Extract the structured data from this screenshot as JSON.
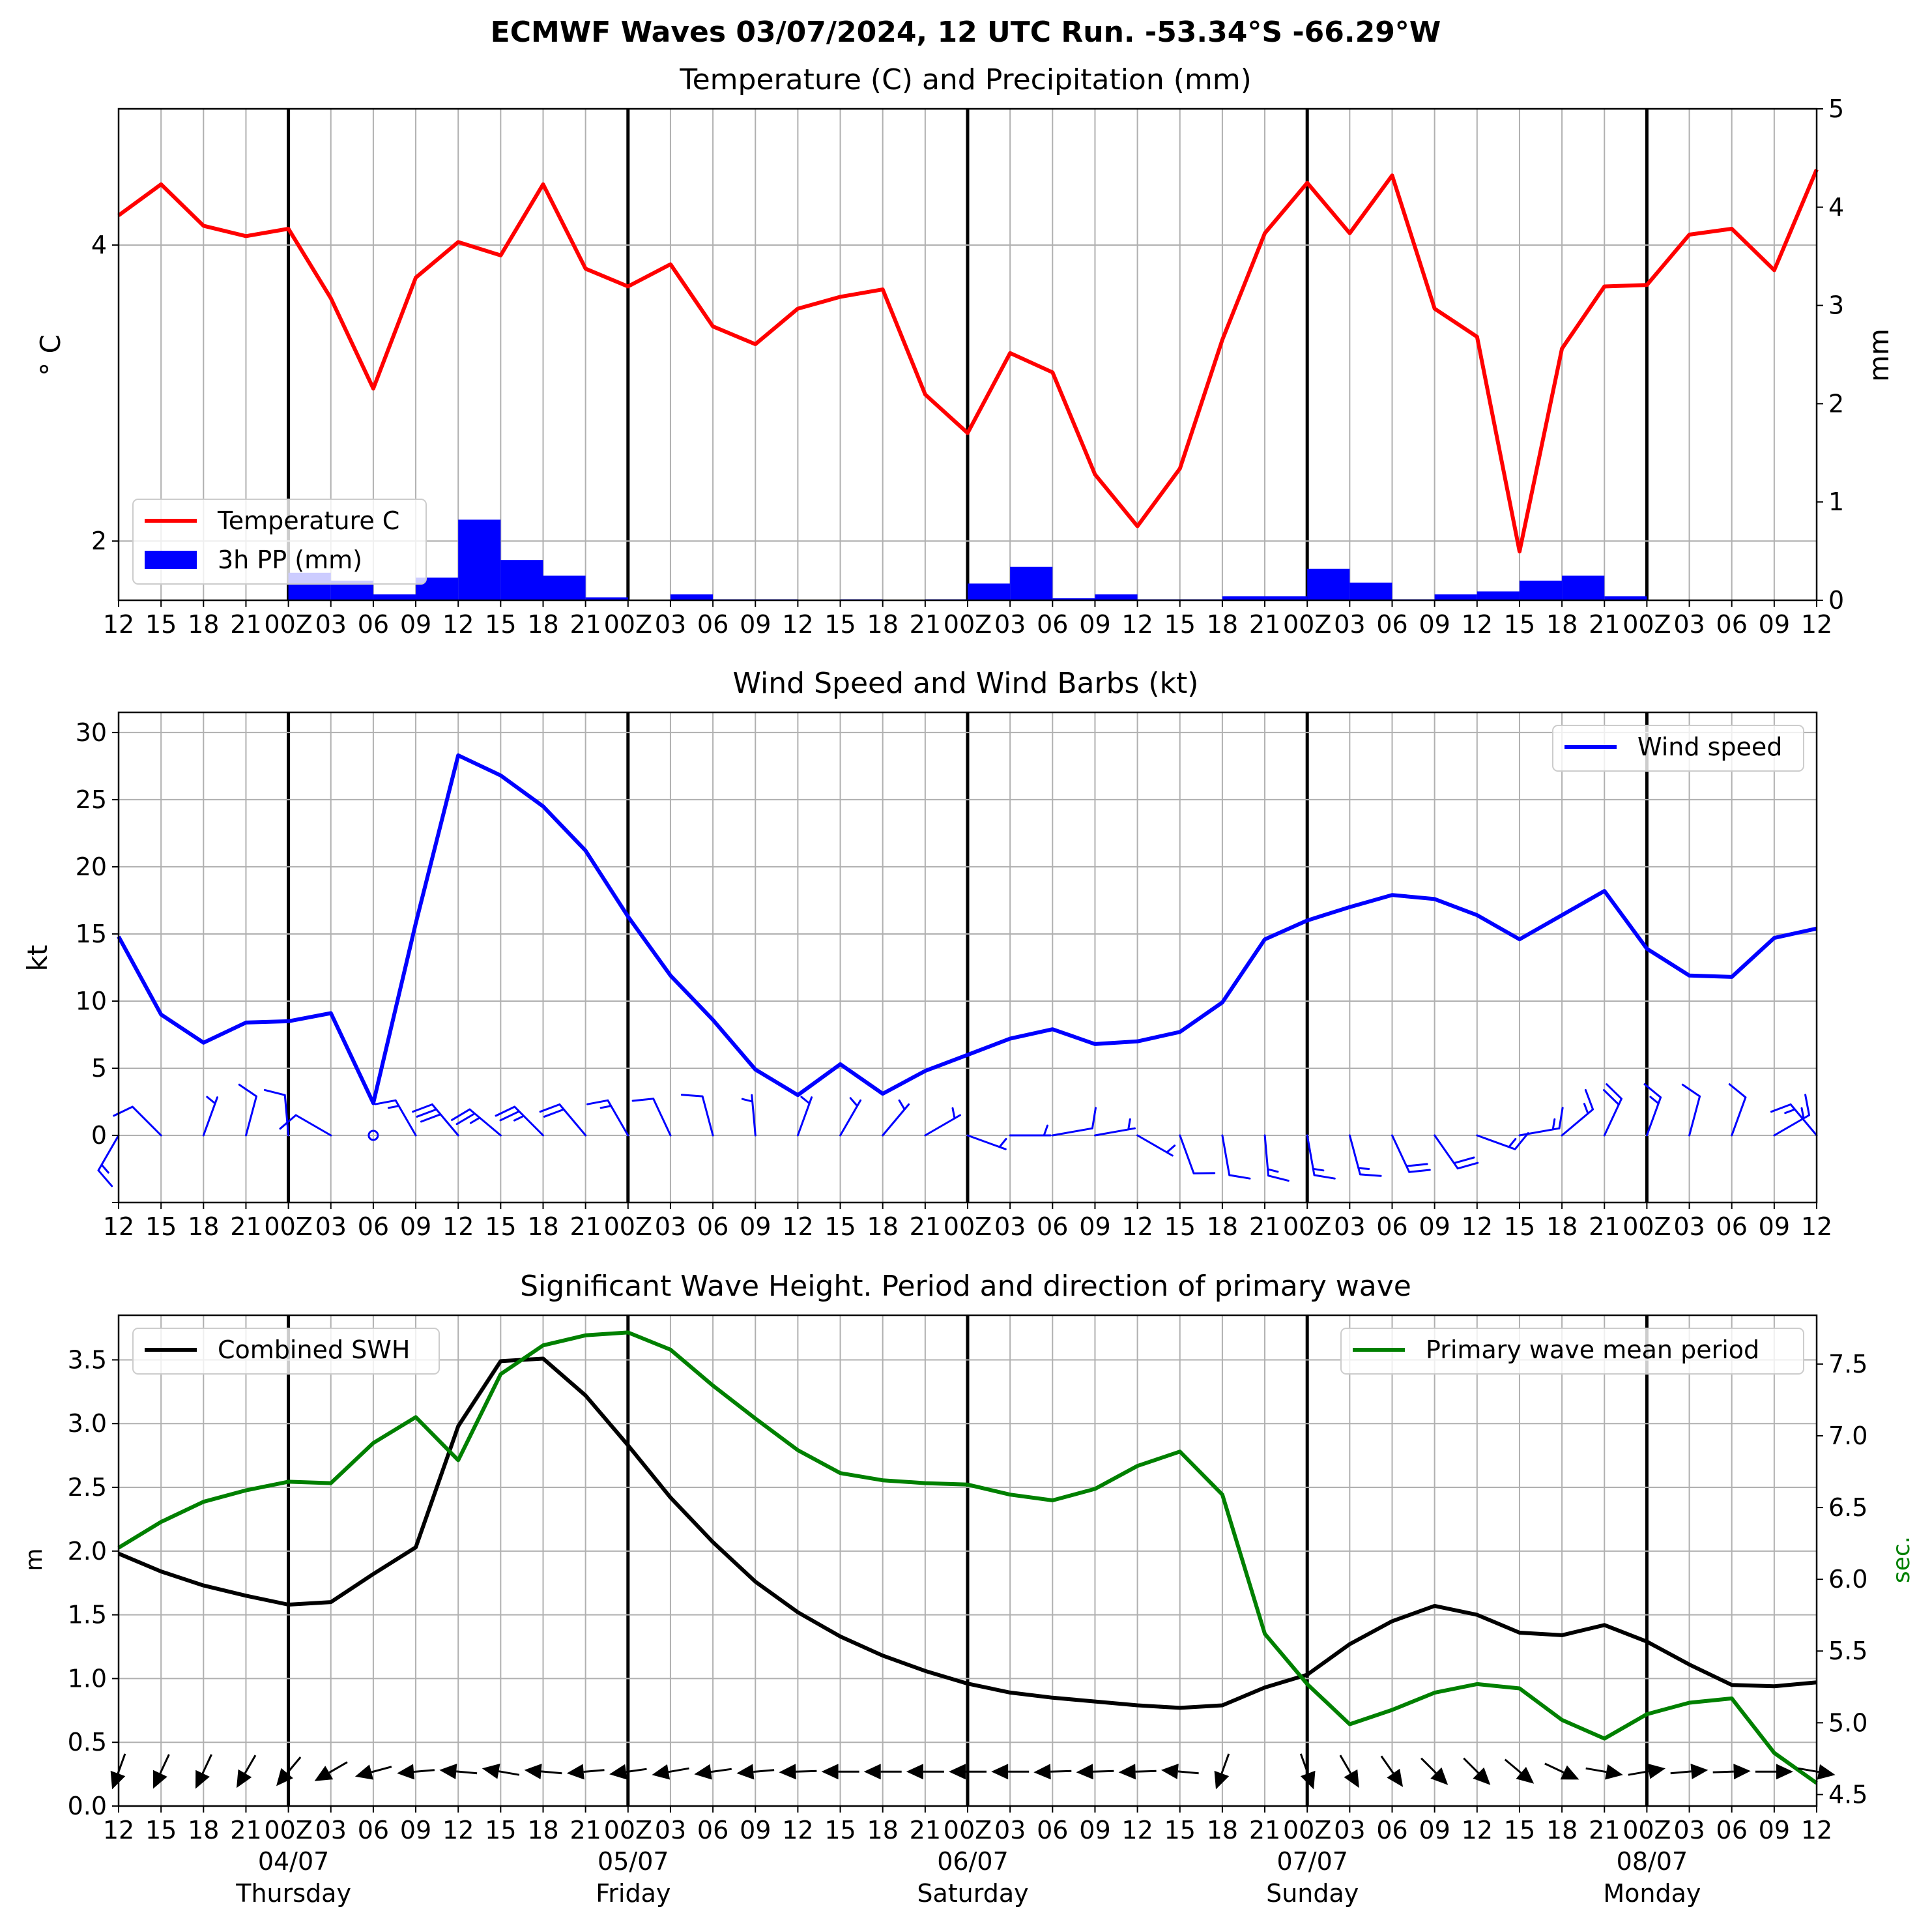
{
  "page_title": "ECMWF Waves 03/07/2024, 12 UTC Run. -53.34°S -66.29°W",
  "colors": {
    "temperature": "#ff0000",
    "precipitation": "#0000ff",
    "wind": "#0000ff",
    "swh": "#000000",
    "period": "#008000",
    "grid": "#b0b0b0",
    "day_divider": "#000000"
  },
  "time_axis": {
    "hour_labels": [
      "12",
      "15",
      "18",
      "21",
      "00Z",
      "03",
      "06",
      "09",
      "12",
      "15",
      "18",
      "21",
      "00Z",
      "03",
      "06",
      "09",
      "12",
      "15",
      "18",
      "21",
      "00Z",
      "03",
      "06",
      "09",
      "12",
      "15",
      "18",
      "21",
      "00Z",
      "03",
      "06",
      "09",
      "12",
      "15",
      "18",
      "21",
      "00Z",
      "03",
      "06",
      "09",
      "12"
    ],
    "day_markers": [
      {
        "date": "04/07",
        "weekday": "Thursday",
        "step": 4
      },
      {
        "date": "05/07",
        "weekday": "Friday",
        "step": 12
      },
      {
        "date": "06/07",
        "weekday": "Saturday",
        "step": 20
      },
      {
        "date": "07/07",
        "weekday": "Sunday",
        "step": 28
      },
      {
        "date": "08/07",
        "weekday": "Monday",
        "step": 36
      }
    ]
  },
  "chart_data": [
    {
      "type": "line",
      "title": "Temperature (C) and Precipitation (mm)",
      "ylabel": "$^\\circ$C",
      "ylabel_display": "° C",
      "y2label": "mm",
      "ylim": [
        1.6,
        4.92
      ],
      "y_ticks": [
        2,
        4
      ],
      "y2lim": [
        0,
        5
      ],
      "y2_ticks": [
        0,
        1,
        2,
        3,
        4,
        5
      ],
      "legend": {
        "position": "lower-left",
        "entries": [
          "Temperature C",
          "3h PP (mm)"
        ]
      },
      "series": [
        {
          "name": "Temperature C",
          "axis": "left",
          "kind": "line",
          "values": [
            4.2,
            4.41,
            4.13,
            4.06,
            4.11,
            3.64,
            3.03,
            3.78,
            4.02,
            3.93,
            4.41,
            3.84,
            3.72,
            3.87,
            3.45,
            3.33,
            3.57,
            3.65,
            3.7,
            2.99,
            2.73,
            3.27,
            3.14,
            2.45,
            2.1,
            2.49,
            3.36,
            4.08,
            4.42,
            4.08,
            4.47,
            3.57,
            3.38,
            1.93,
            3.3,
            3.72,
            3.73,
            4.07,
            4.11,
            3.83,
            4.51
          ]
        },
        {
          "name": "3h PP (mm)",
          "axis": "right",
          "kind": "bar",
          "values": [
            0,
            0,
            0,
            0,
            0.28,
            0.2,
            0.06,
            0.23,
            0.82,
            0.41,
            0.25,
            0.03,
            0,
            0.06,
            0.01,
            0.01,
            0,
            0.01,
            0,
            0.01,
            0.17,
            0.34,
            0.02,
            0.06,
            0.01,
            0.01,
            0.04,
            0.04,
            0.32,
            0.18,
            0.01,
            0.06,
            0.09,
            0.2,
            0.25,
            0.04,
            0,
            0,
            0,
            0,
            0
          ]
        }
      ]
    },
    {
      "type": "line",
      "title": "Wind Speed and Wind Barbs (kt)",
      "ylabel": "kt",
      "ylim": [
        -5,
        31.5
      ],
      "y_ticks": [
        0,
        5,
        10,
        15,
        20,
        25,
        30
      ],
      "legend": {
        "position": "top-right",
        "entries": [
          "Wind speed"
        ]
      },
      "series": [
        {
          "name": "Wind speed",
          "values": [
            14.8,
            9.0,
            6.9,
            8.4,
            8.5,
            9.1,
            2.4,
            15.8,
            28.3,
            26.8,
            24.5,
            21.2,
            16.3,
            11.9,
            8.6,
            4.9,
            3.0,
            5.3,
            3.1,
            4.8,
            6.0,
            7.2,
            7.9,
            6.8,
            7.0,
            7.7,
            9.9,
            14.6,
            16.0,
            17.0,
            17.9,
            17.6,
            16.4,
            14.6,
            16.4,
            18.2,
            13.9,
            11.9,
            11.8,
            14.7,
            15.4
          ]
        }
      ],
      "barbs": {
        "from_direction_deg": [
          210,
          315,
          20,
          15,
          355,
          300,
          null,
          330,
          320,
          310,
          315,
          320,
          330,
          335,
          345,
          355,
          20,
          30,
          40,
          60,
          110,
          90,
          80,
          80,
          120,
          160,
          170,
          175,
          170,
          165,
          155,
          145,
          110,
          80,
          50,
          25,
          20,
          15,
          20,
          60,
          320
        ]
      }
    },
    {
      "type": "line",
      "title": "Significant Wave Height. Period and direction of primary wave",
      "ylabel": "m",
      "y2label": "sec.",
      "ylim": [
        0,
        3.85
      ],
      "y_ticks": [
        0.0,
        0.5,
        1.0,
        1.5,
        2.0,
        2.5,
        3.0,
        3.5
      ],
      "y2lim": [
        4.42,
        7.84
      ],
      "y2_ticks": [
        4.5,
        5.0,
        5.5,
        6.0,
        6.5,
        7.0,
        7.5
      ],
      "legends": [
        {
          "position": "top-left",
          "entries": [
            "Combined SWH"
          ]
        },
        {
          "position": "top-right",
          "entries": [
            "Primary wave mean period"
          ]
        }
      ],
      "series": [
        {
          "name": "Combined SWH",
          "axis": "left",
          "values": [
            1.98,
            1.84,
            1.73,
            1.65,
            1.58,
            1.6,
            1.82,
            2.03,
            2.98,
            3.49,
            3.51,
            3.22,
            2.83,
            2.42,
            2.07,
            1.76,
            1.52,
            1.33,
            1.18,
            1.06,
            0.96,
            0.89,
            0.85,
            0.82,
            0.79,
            0.77,
            0.79,
            0.93,
            1.03,
            1.27,
            1.45,
            1.57,
            1.5,
            1.36,
            1.34,
            1.42,
            1.29,
            1.11,
            0.95,
            0.94,
            0.97
          ]
        },
        {
          "name": "Primary wave mean period",
          "axis": "right",
          "values": [
            6.22,
            6.4,
            6.54,
            6.62,
            6.68,
            6.67,
            6.95,
            7.13,
            6.83,
            7.43,
            7.63,
            7.7,
            7.72,
            7.6,
            7.35,
            7.12,
            6.9,
            6.74,
            6.69,
            6.67,
            6.66,
            6.59,
            6.55,
            6.63,
            6.79,
            6.89,
            6.59,
            5.62,
            5.27,
            4.99,
            5.09,
            5.21,
            5.27,
            5.24,
            5.02,
            4.89,
            5.06,
            5.14,
            5.17,
            4.79,
            4.58
          ]
        }
      ],
      "direction_arrows": {
        "toward_deg": [
          200,
          205,
          205,
          210,
          220,
          240,
          255,
          265,
          275,
          280,
          275,
          265,
          262,
          260,
          262,
          265,
          268,
          270,
          270,
          270,
          270,
          270,
          268,
          268,
          268,
          275,
          200,
          null,
          160,
          150,
          145,
          135,
          135,
          130,
          115,
          100,
          80,
          85,
          88,
          90,
          100
        ]
      }
    }
  ]
}
